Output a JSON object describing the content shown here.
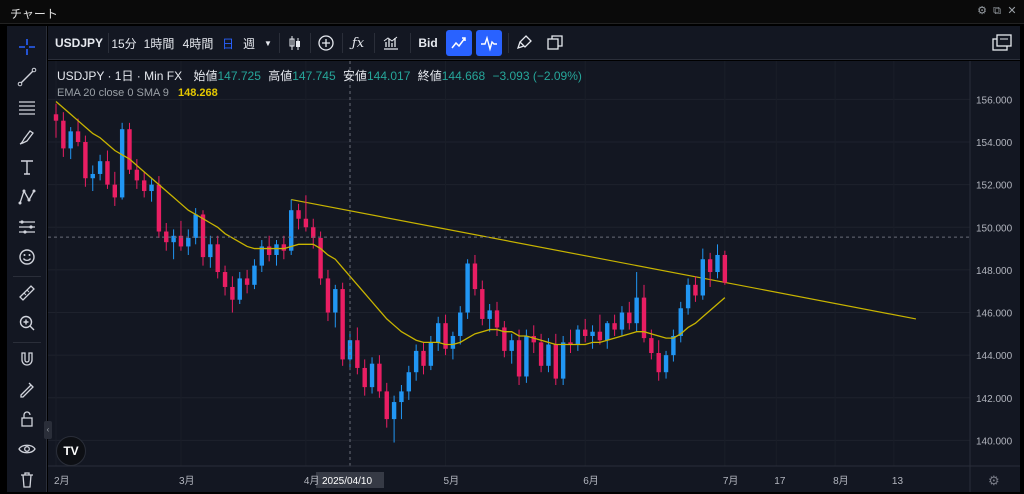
{
  "window": {
    "title": "チャート"
  },
  "toolbar": {
    "symbol": "USDJPY",
    "intervals": [
      "15分",
      "1時間",
      "4時間",
      "日",
      "週"
    ],
    "active_interval": "日",
    "price_type": "Bid",
    "indicator_icon": "fx"
  },
  "legend": {
    "symbol_line": "USDJPY · 1日 · Min FX",
    "open_label": "始値",
    "open": "147.725",
    "high_label": "高値",
    "high": "147.745",
    "low_label": "安値",
    "low": "144.017",
    "close_label": "終値",
    "close": "144.668",
    "change": "−3.093 (−2.09%)",
    "indicator_name": "EMA 20 close 0 SMA 9",
    "indicator_value": "148.268"
  },
  "colors": {
    "up": "#26a69a",
    "up_body": "#2196f3",
    "down": "#e91e63",
    "ema": "#c8b400",
    "trendline": "#c8b400",
    "background": "#131722",
    "accent": "#2962ff"
  },
  "chart_data": {
    "type": "candlestick",
    "y_ticks": [
      "156.000",
      "154.000",
      "152.000",
      "150.000",
      "148.000",
      "146.000",
      "144.000",
      "142.000",
      "140.000"
    ],
    "ylim": [
      138.8,
      157.8
    ],
    "x_ticks": [
      "2月",
      "3月",
      "4月",
      "5月",
      "6月",
      "7月",
      "17",
      "8月",
      "13"
    ],
    "crosshair_date": "2025/04/10",
    "crosshair_price": "149.536",
    "last_price": "147.422",
    "trendline_from": {
      "date": "2025-03-27",
      "value": 151.3
    },
    "trendline_to": {
      "date": "2025-08-14",
      "value": 145.7
    },
    "candles": [
      [
        155.3,
        155.8,
        154.2,
        155.0
      ],
      [
        155.0,
        155.4,
        153.3,
        153.7
      ],
      [
        153.7,
        154.7,
        153.2,
        154.5
      ],
      [
        154.5,
        155.1,
        153.8,
        154.0
      ],
      [
        154.0,
        154.3,
        151.9,
        152.3
      ],
      [
        152.3,
        152.9,
        151.7,
        152.5
      ],
      [
        152.5,
        153.4,
        152.2,
        153.1
      ],
      [
        153.1,
        153.6,
        151.8,
        152.0
      ],
      [
        152.0,
        152.6,
        151.0,
        151.4
      ],
      [
        151.4,
        154.9,
        151.3,
        154.6
      ],
      [
        154.6,
        154.9,
        152.5,
        152.7
      ],
      [
        152.7,
        153.2,
        151.8,
        152.2
      ],
      [
        152.2,
        152.6,
        151.4,
        151.7
      ],
      [
        151.7,
        152.3,
        151.2,
        152.0
      ],
      [
        152.0,
        152.4,
        149.5,
        149.8
      ],
      [
        149.8,
        150.2,
        148.9,
        149.3
      ],
      [
        149.3,
        149.9,
        148.5,
        149.6
      ],
      [
        149.6,
        150.3,
        148.9,
        149.1
      ],
      [
        149.1,
        149.9,
        148.7,
        149.5
      ],
      [
        149.5,
        150.9,
        149.2,
        150.6
      ],
      [
        150.6,
        150.8,
        148.2,
        148.6
      ],
      [
        148.6,
        149.6,
        148.1,
        149.2
      ],
      [
        149.2,
        149.6,
        147.6,
        147.9
      ],
      [
        147.9,
        148.2,
        146.8,
        147.2
      ],
      [
        147.2,
        147.7,
        146.0,
        146.6
      ],
      [
        146.6,
        147.9,
        146.4,
        147.6
      ],
      [
        147.6,
        148.0,
        146.9,
        147.3
      ],
      [
        147.3,
        148.5,
        147.1,
        148.2
      ],
      [
        148.2,
        149.4,
        147.9,
        149.1
      ],
      [
        149.1,
        149.6,
        148.4,
        148.7
      ],
      [
        148.7,
        149.4,
        148.2,
        149.2
      ],
      [
        149.2,
        149.6,
        148.5,
        148.9
      ],
      [
        148.9,
        151.3,
        148.7,
        150.8
      ],
      [
        150.8,
        151.1,
        149.9,
        150.4
      ],
      [
        150.4,
        151.5,
        149.8,
        150.0
      ],
      [
        150.0,
        150.4,
        149.0,
        149.5
      ],
      [
        149.5,
        149.8,
        147.3,
        147.6
      ],
      [
        147.6,
        148.0,
        145.6,
        146.0
      ],
      [
        146.0,
        147.3,
        145.3,
        147.1
      ],
      [
        147.1,
        147.4,
        143.5,
        143.8
      ],
      [
        143.8,
        145.1,
        143.3,
        144.7
      ],
      [
        144.7,
        145.3,
        143.1,
        143.4
      ],
      [
        143.4,
        143.8,
        142.1,
        142.5
      ],
      [
        142.5,
        143.9,
        142.2,
        143.6
      ],
      [
        143.6,
        144.0,
        142.0,
        142.3
      ],
      [
        142.3,
        142.7,
        140.6,
        141.0
      ],
      [
        141.0,
        142.1,
        139.9,
        141.8
      ],
      [
        141.8,
        142.6,
        141.0,
        142.3
      ],
      [
        142.3,
        143.5,
        141.9,
        143.2
      ],
      [
        143.2,
        144.5,
        142.8,
        144.2
      ],
      [
        144.2,
        144.6,
        143.1,
        143.5
      ],
      [
        143.5,
        144.9,
        143.3,
        144.6
      ],
      [
        144.6,
        145.8,
        144.2,
        145.5
      ],
      [
        145.5,
        145.9,
        144.0,
        144.3
      ],
      [
        144.3,
        145.1,
        143.8,
        144.9
      ],
      [
        144.9,
        146.3,
        144.5,
        146.0
      ],
      [
        146.0,
        148.5,
        145.7,
        148.3
      ],
      [
        148.3,
        148.7,
        146.8,
        147.1
      ],
      [
        147.1,
        147.5,
        145.4,
        145.7
      ],
      [
        145.7,
        146.4,
        145.1,
        146.1
      ],
      [
        146.1,
        146.5,
        144.9,
        145.3
      ],
      [
        145.3,
        145.6,
        143.9,
        144.2
      ],
      [
        144.2,
        145.0,
        143.6,
        144.7
      ],
      [
        144.7,
        145.2,
        142.6,
        143.0
      ],
      [
        143.0,
        145.2,
        142.7,
        144.9
      ],
      [
        144.9,
        145.4,
        144.1,
        144.6
      ],
      [
        144.6,
        145.0,
        143.2,
        143.5
      ],
      [
        143.5,
        144.8,
        143.2,
        144.5
      ],
      [
        144.5,
        145.0,
        142.6,
        142.9
      ],
      [
        142.9,
        144.9,
        142.6,
        144.6
      ],
      [
        144.6,
        145.2,
        144.1,
        144.5
      ],
      [
        144.5,
        145.4,
        144.2,
        145.2
      ],
      [
        145.2,
        145.7,
        144.6,
        144.9
      ],
      [
        144.9,
        145.4,
        144.3,
        145.1
      ],
      [
        145.1,
        145.9,
        144.5,
        144.7
      ],
      [
        144.7,
        145.6,
        144.3,
        145.5
      ],
      [
        145.5,
        145.9,
        144.9,
        145.2
      ],
      [
        145.2,
        146.3,
        144.9,
        146.0
      ],
      [
        146.0,
        146.5,
        145.2,
        145.5
      ],
      [
        145.5,
        147.9,
        145.1,
        146.7
      ],
      [
        146.7,
        147.3,
        144.6,
        144.8
      ],
      [
        144.8,
        145.2,
        143.8,
        144.1
      ],
      [
        144.1,
        144.7,
        142.8,
        143.2
      ],
      [
        143.2,
        144.2,
        142.9,
        144.0
      ],
      [
        144.0,
        145.2,
        143.7,
        144.9
      ],
      [
        144.9,
        146.5,
        144.6,
        146.2
      ],
      [
        146.2,
        147.6,
        145.9,
        147.3
      ],
      [
        147.3,
        147.7,
        146.5,
        146.8
      ],
      [
        146.8,
        149.0,
        146.6,
        148.5
      ],
      [
        148.5,
        148.8,
        147.2,
        147.9
      ],
      [
        147.9,
        149.2,
        147.6,
        148.7
      ],
      [
        148.7,
        148.9,
        147.3,
        147.4
      ]
    ],
    "ema": [
      155.9,
      155.6,
      155.3,
      155.0,
      154.7,
      154.4,
      154.2,
      153.9,
      153.6,
      153.4,
      153.2,
      152.9,
      152.6,
      152.3,
      152.0,
      151.7,
      151.4,
      151.1,
      150.8,
      150.6,
      150.4,
      150.2,
      150.0,
      149.7,
      149.5,
      149.3,
      149.1,
      149.0,
      149.0,
      149.0,
      149.0,
      149.0,
      149.1,
      149.2,
      149.2,
      149.2,
      149.0,
      148.7,
      148.5,
      148.1,
      147.7,
      147.3,
      146.9,
      146.5,
      146.1,
      145.7,
      145.4,
      145.1,
      144.9,
      144.7,
      144.6,
      144.6,
      144.6,
      144.5,
      144.5,
      144.6,
      144.8,
      145.0,
      145.1,
      145.2,
      145.2,
      145.1,
      145.1,
      144.9,
      144.9,
      144.8,
      144.7,
      144.6,
      144.5,
      144.5,
      144.5,
      144.5,
      144.5,
      144.6,
      144.6,
      144.7,
      144.8,
      144.9,
      145.0,
      145.1,
      145.1,
      145.0,
      144.9,
      144.8,
      144.8,
      145.0,
      145.3,
      145.5,
      145.8,
      146.1,
      146.4,
      146.7
    ]
  }
}
